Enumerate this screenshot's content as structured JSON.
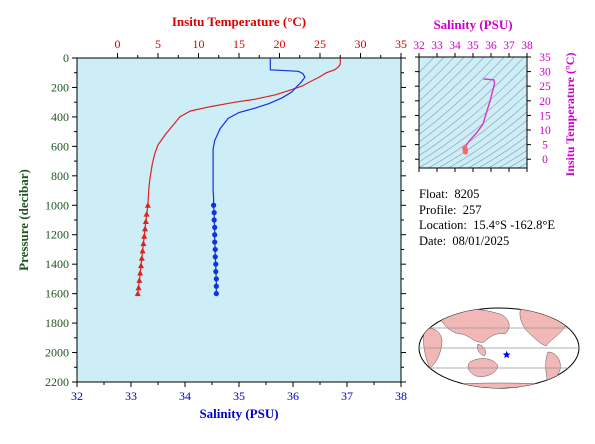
{
  "chart_data": [
    {
      "type": "line",
      "x_bottom": {
        "label": "Salinity (PSU)",
        "range": [
          32,
          38
        ],
        "ticks": [
          "32",
          "33",
          "34",
          "35",
          "36",
          "37",
          "38"
        ],
        "color": "#0000cc"
      },
      "x_top": {
        "label": "Insitu Temperature (°C)",
        "range": [
          -5,
          35
        ],
        "ticks": [
          "0",
          "5",
          "10",
          "15",
          "20",
          "25",
          "30",
          "35"
        ],
        "color": "#dd0000"
      },
      "y": {
        "label": "Pressure (decibar)",
        "range": [
          0,
          2200
        ],
        "inverted": true,
        "ticks": [
          "0",
          "200",
          "400",
          "600",
          "800",
          "1000",
          "1200",
          "1400",
          "1600",
          "1800",
          "2000",
          "2200"
        ],
        "color": "#225522"
      },
      "background": "#cdeef7",
      "series": [
        {
          "axis": "temperature",
          "color": "#dd2222",
          "marker": "triangle",
          "points": [
            [
              27.5,
              5
            ],
            [
              27.5,
              40
            ],
            [
              27.3,
              60
            ],
            [
              26.8,
              80
            ],
            [
              25.8,
              100
            ],
            [
              24.9,
              130
            ],
            [
              23.8,
              160
            ],
            [
              22.8,
              190
            ],
            [
              21.5,
              215
            ],
            [
              19.5,
              250
            ],
            [
              17.0,
              280
            ],
            [
              14.5,
              300
            ],
            [
              11.5,
              330
            ],
            [
              9.0,
              360
            ],
            [
              7.7,
              400
            ],
            [
              6.8,
              460
            ],
            [
              5.9,
              520
            ],
            [
              5.0,
              590
            ],
            [
              4.6,
              650
            ],
            [
              4.3,
              720
            ],
            [
              4.0,
              820
            ],
            [
              3.85,
              900
            ],
            [
              3.8,
              950
            ],
            [
              3.75,
              1000
            ],
            [
              3.6,
              1060
            ],
            [
              3.5,
              1110
            ],
            [
              3.4,
              1160
            ],
            [
              3.3,
              1210
            ],
            [
              3.2,
              1260
            ],
            [
              3.1,
              1310
            ],
            [
              3.0,
              1360
            ],
            [
              2.9,
              1410
            ],
            [
              2.8,
              1460
            ],
            [
              2.7,
              1510
            ],
            [
              2.6,
              1560
            ],
            [
              2.5,
              1600
            ]
          ],
          "marked_from_pressure": 1000
        },
        {
          "axis": "salinity",
          "color": "#1133dd",
          "marker": "circle",
          "points": [
            [
              35.58,
              5
            ],
            [
              35.58,
              80
            ],
            [
              36.1,
              90
            ],
            [
              36.18,
              105
            ],
            [
              36.22,
              130
            ],
            [
              36.15,
              165
            ],
            [
              36.08,
              190
            ],
            [
              35.98,
              230
            ],
            [
              35.8,
              270
            ],
            [
              35.55,
              310
            ],
            [
              35.3,
              340
            ],
            [
              35.0,
              370
            ],
            [
              34.8,
              410
            ],
            [
              34.65,
              480
            ],
            [
              34.55,
              560
            ],
            [
              34.52,
              620
            ],
            [
              34.52,
              700
            ],
            [
              34.52,
              800
            ],
            [
              34.52,
              900
            ],
            [
              34.53,
              950
            ],
            [
              34.53,
              1000
            ],
            [
              34.54,
              1050
            ],
            [
              34.54,
              1100
            ],
            [
              34.55,
              1150
            ],
            [
              34.55,
              1200
            ],
            [
              34.55,
              1250
            ],
            [
              34.56,
              1300
            ],
            [
              34.56,
              1350
            ],
            [
              34.57,
              1400
            ],
            [
              34.57,
              1450
            ],
            [
              34.58,
              1500
            ],
            [
              34.58,
              1550
            ],
            [
              34.58,
              1600
            ]
          ],
          "marked_from_pressure": 1000
        }
      ]
    },
    {
      "type": "scatter",
      "x_axis": {
        "label": "Salinity (PSU)",
        "range": [
          32,
          38
        ],
        "ticks": [
          "32",
          "33",
          "34",
          "35",
          "36",
          "37",
          "38"
        ],
        "color": "#cc00cc"
      },
      "y_axis": {
        "label": "Insitu Temperature (°C)",
        "range": [
          -3,
          35
        ],
        "ticks": [
          "0",
          "5",
          "10",
          "15",
          "20",
          "25",
          "30",
          "35"
        ],
        "color": "#cc00cc"
      },
      "background": "#cdeef7",
      "series": [
        {
          "color": "#dd33cc",
          "points": [
            [
              35.58,
              27.5
            ],
            [
              36.15,
              27.2
            ],
            [
              36.2,
              26.0
            ],
            [
              36.1,
              23.5
            ],
            [
              35.95,
              20.0
            ],
            [
              35.75,
              16.0
            ],
            [
              35.55,
              12.0
            ],
            [
              35.2,
              9.0
            ],
            [
              34.9,
              7.0
            ],
            [
              34.7,
              5.5
            ],
            [
              34.6,
              4.5
            ],
            [
              34.55,
              3.8
            ],
            [
              34.56,
              3.2
            ],
            [
              34.58,
              2.5
            ]
          ]
        }
      ],
      "marker_cluster": {
        "color": "#ff6666",
        "points": [
          [
            34.55,
            3.8
          ],
          [
            34.56,
            3.4
          ],
          [
            34.57,
            3.0
          ],
          [
            34.58,
            2.7
          ],
          [
            34.58,
            2.5
          ]
        ]
      }
    }
  ],
  "info": {
    "float_label": "Float:",
    "float_value": "8205",
    "profile_label": "Profile:",
    "profile_value": "257",
    "location_label": "Location:",
    "location_value": "15.4°S  -162.8°E",
    "date_label": "Date:",
    "date_value": "08/01/2025"
  },
  "map": {
    "ocean_color": "#ffffff",
    "land_color": "#f2b8b8",
    "marker_color": "#0000ff",
    "marker_icon": "star-icon",
    "marker_lon": -162.8,
    "marker_lat": -15.4
  }
}
